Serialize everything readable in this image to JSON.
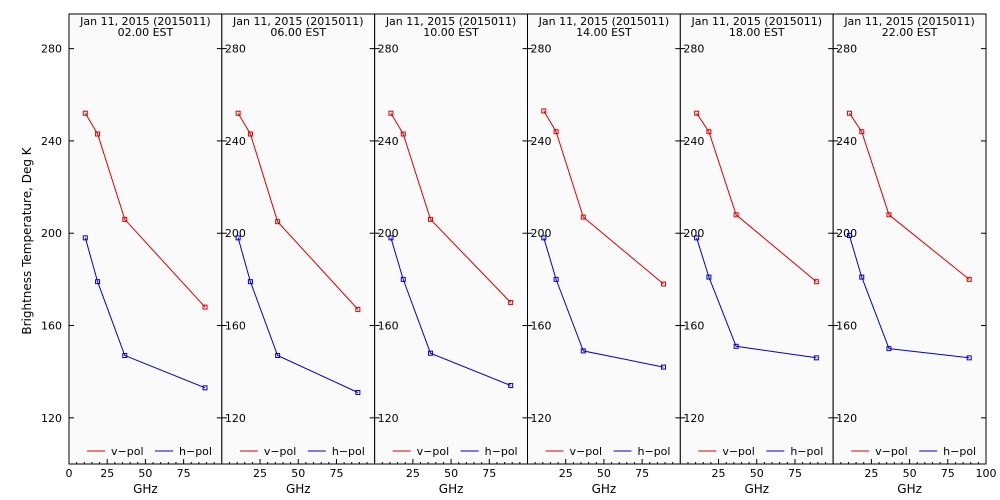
{
  "colors": {
    "v_pol": "#dd0000",
    "h_pol": "#0000cc",
    "background": "#fafafa",
    "frame": "#000000"
  },
  "ylabel": "Brightness Temperature, Deg K",
  "xlabel": "GHz",
  "yticks": [
    120,
    160,
    200,
    240,
    280
  ],
  "ylim": [
    100,
    295
  ],
  "xlim": [
    0,
    100
  ],
  "first_panel_xticks": [
    "0",
    "25",
    "50",
    "75"
  ],
  "other_panel_xticks": [
    "25",
    "50",
    "75"
  ],
  "last_panel_extra_xtick": "100",
  "legend": {
    "v_label": "v−pol",
    "h_label": "h−pol"
  },
  "chart_data": [
    {
      "type": "line",
      "title_line1": "Jan 11, 2015 (2015011)",
      "title_line2": "02.00 EST",
      "series": [
        {
          "name": "v−pol",
          "x": [
            10.65,
            18.7,
            36.5,
            89.0
          ],
          "y": [
            252,
            243,
            206,
            168
          ]
        },
        {
          "name": "h−pol",
          "x": [
            10.65,
            18.7,
            36.5,
            89.0
          ],
          "y": [
            198,
            179,
            147,
            133
          ]
        }
      ]
    },
    {
      "type": "line",
      "title_line1": "Jan 11, 2015 (2015011)",
      "title_line2": "06.00 EST",
      "series": [
        {
          "name": "v−pol",
          "x": [
            10.65,
            18.7,
            36.5,
            89.0
          ],
          "y": [
            252,
            243,
            205,
            167
          ]
        },
        {
          "name": "h−pol",
          "x": [
            10.65,
            18.7,
            36.5,
            89.0
          ],
          "y": [
            198,
            179,
            147,
            131
          ]
        }
      ]
    },
    {
      "type": "line",
      "title_line1": "Jan 11, 2015 (2015011)",
      "title_line2": "10.00 EST",
      "series": [
        {
          "name": "v−pol",
          "x": [
            10.65,
            18.7,
            36.5,
            89.0
          ],
          "y": [
            252,
            243,
            206,
            170
          ]
        },
        {
          "name": "h−pol",
          "x": [
            10.65,
            18.7,
            36.5,
            89.0
          ],
          "y": [
            198,
            180,
            148,
            134
          ]
        }
      ]
    },
    {
      "type": "line",
      "title_line1": "Jan 11, 2015 (2015011)",
      "title_line2": "14.00 EST",
      "series": [
        {
          "name": "v−pol",
          "x": [
            10.65,
            18.7,
            36.5,
            89.0
          ],
          "y": [
            253,
            244,
            207,
            178
          ]
        },
        {
          "name": "h−pol",
          "x": [
            10.65,
            18.7,
            36.5,
            89.0
          ],
          "y": [
            198,
            180,
            149,
            142
          ]
        }
      ]
    },
    {
      "type": "line",
      "title_line1": "Jan 11, 2015 (2015011)",
      "title_line2": "18.00 EST",
      "series": [
        {
          "name": "v−pol",
          "x": [
            10.65,
            18.7,
            36.5,
            89.0
          ],
          "y": [
            252,
            244,
            208,
            179
          ]
        },
        {
          "name": "h−pol",
          "x": [
            10.65,
            18.7,
            36.5,
            89.0
          ],
          "y": [
            198,
            181,
            151,
            146
          ]
        }
      ]
    },
    {
      "type": "line",
      "title_line1": "Jan 11, 2015 (2015011)",
      "title_line2": "22.00 EST",
      "series": [
        {
          "name": "v−pol",
          "x": [
            10.65,
            18.7,
            36.5,
            89.0
          ],
          "y": [
            252,
            244,
            208,
            180
          ]
        },
        {
          "name": "h−pol",
          "x": [
            10.65,
            18.7,
            36.5,
            89.0
          ],
          "y": [
            199,
            181,
            150,
            146
          ]
        }
      ]
    }
  ]
}
